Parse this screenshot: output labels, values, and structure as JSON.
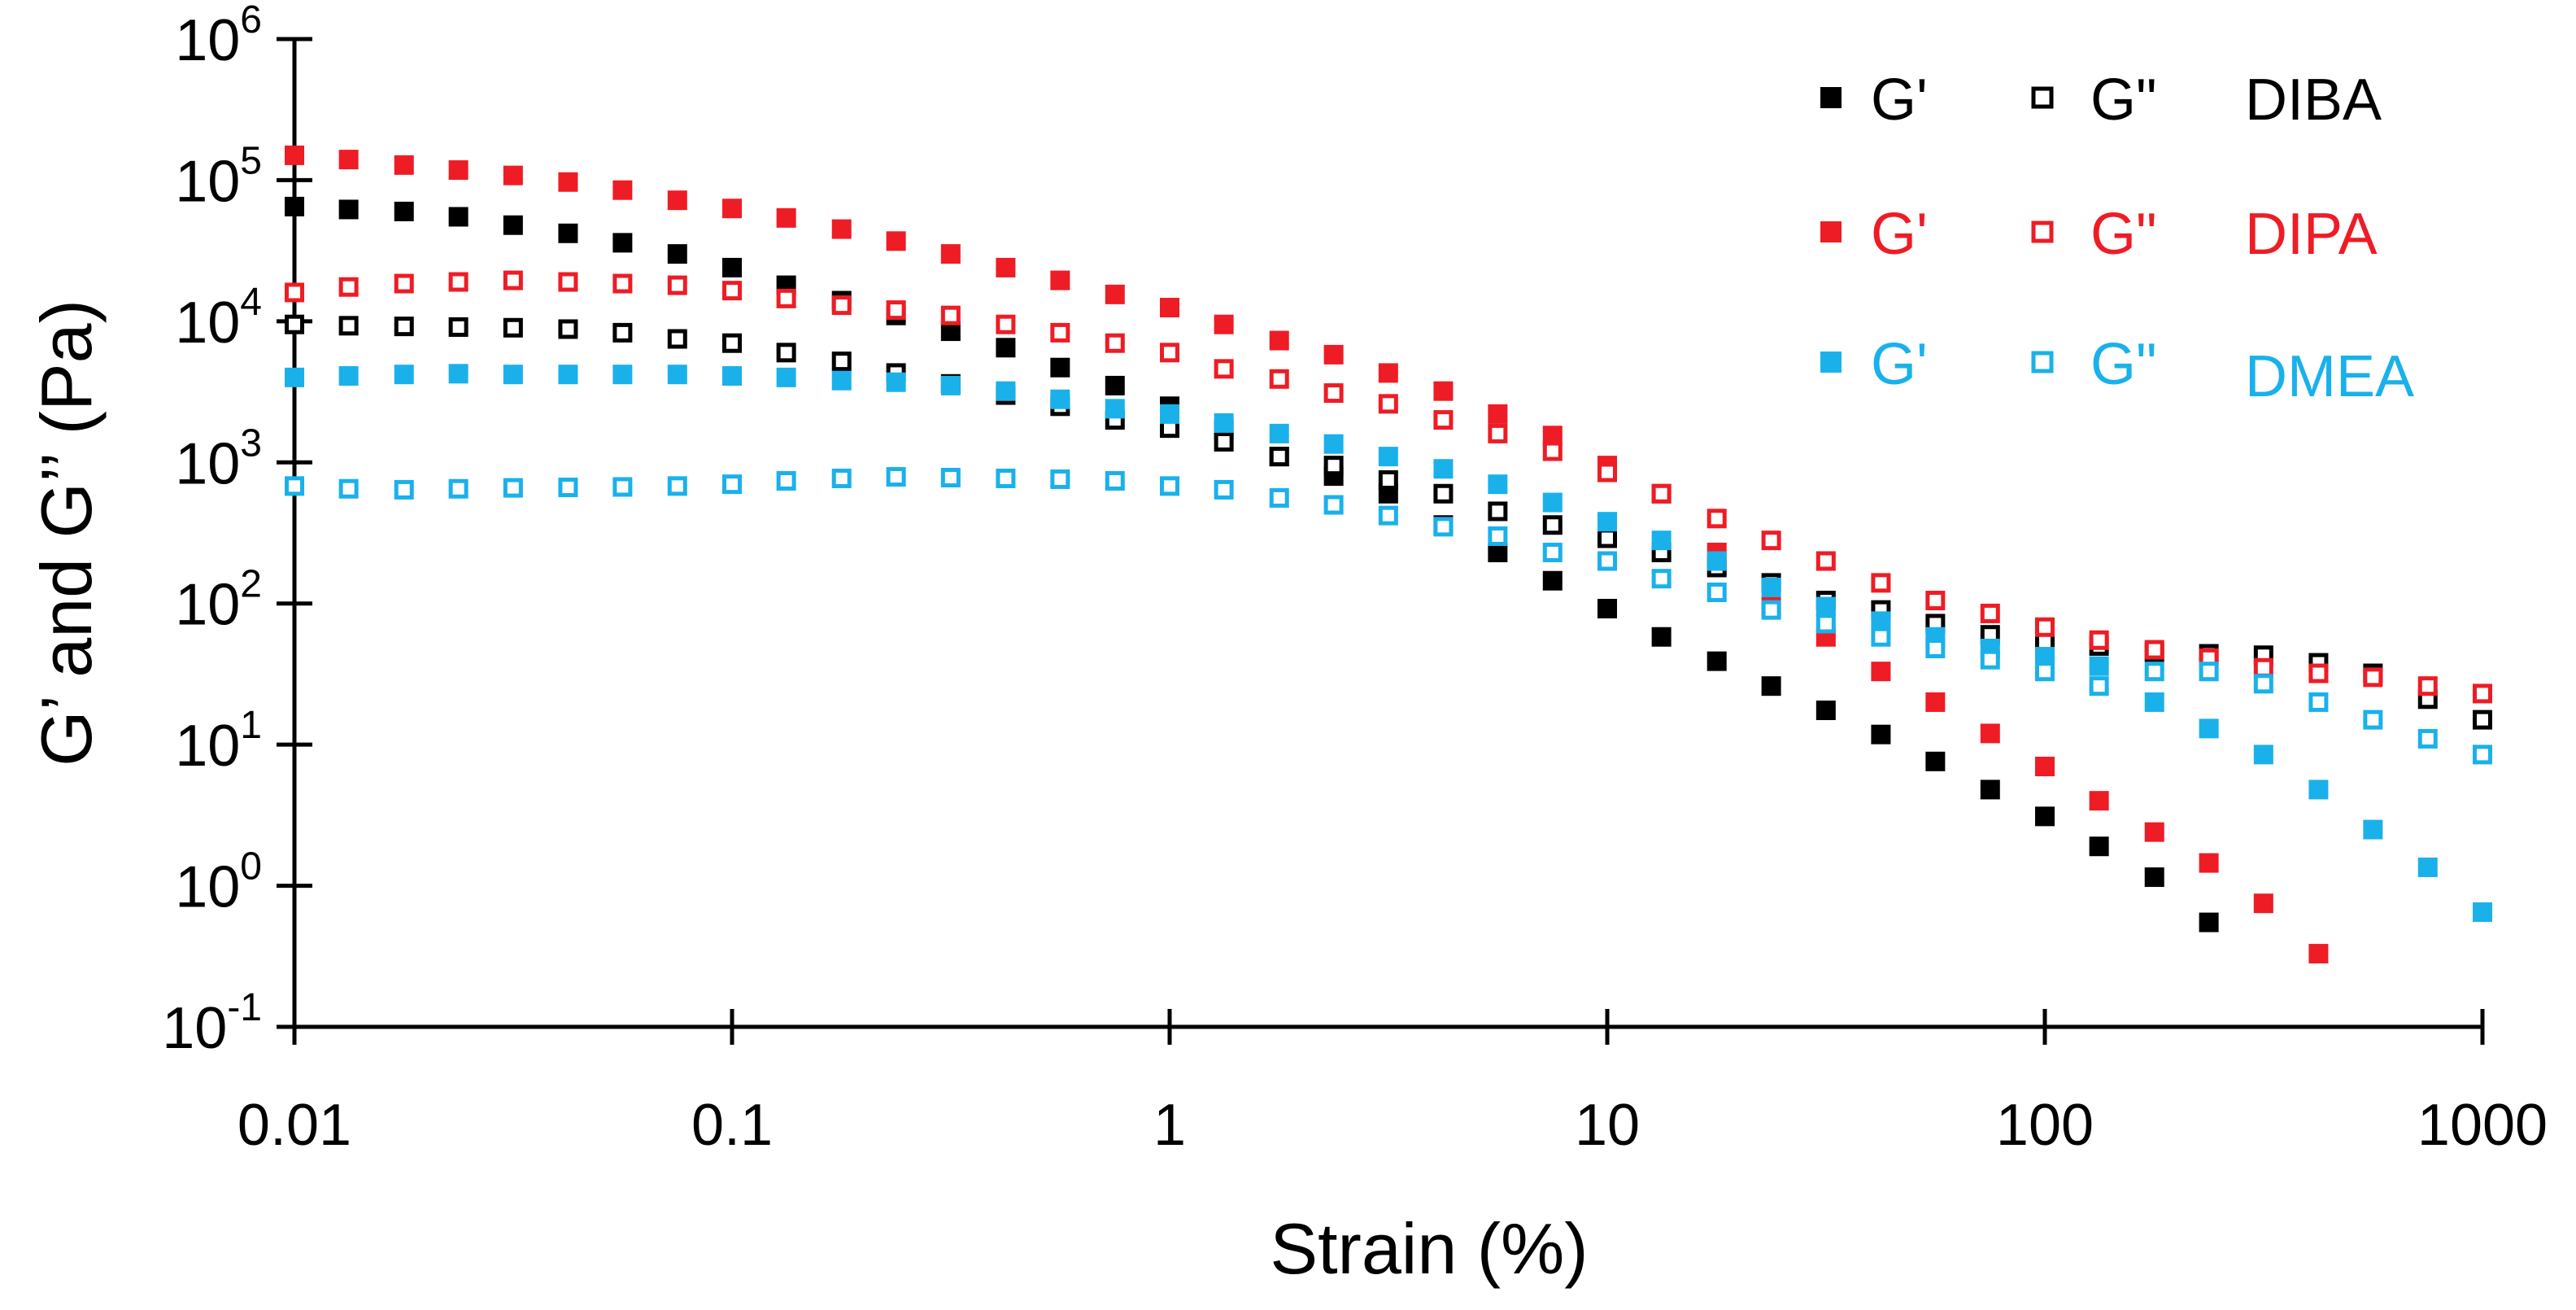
{
  "chart_data": {
    "type": "scatter",
    "title": "",
    "xlabel": "Strain (%)",
    "ylabel": "G’ and G’’ (Pa)",
    "xscale": "log",
    "yscale": "log",
    "xlim": [
      0.01,
      1000
    ],
    "ylim": [
      0.1,
      1000000
    ],
    "x_ticks": [
      {
        "value": 0.01,
        "label": "0.01"
      },
      {
        "value": 0.1,
        "label": "0.1"
      },
      {
        "value": 1,
        "label": "1"
      },
      {
        "value": 10,
        "label": "10"
      },
      {
        "value": 100,
        "label": "100"
      },
      {
        "value": 1000,
        "label": "1000"
      }
    ],
    "y_ticks": [
      {
        "value": 0.1,
        "base": "10",
        "exp": "-1"
      },
      {
        "value": 1,
        "base": "10",
        "exp": "0"
      },
      {
        "value": 10,
        "base": "10",
        "exp": "1"
      },
      {
        "value": 100,
        "base": "10",
        "exp": "2"
      },
      {
        "value": 1000,
        "base": "10",
        "exp": "3"
      },
      {
        "value": 10000,
        "base": "10",
        "exp": "4"
      },
      {
        "value": 100000,
        "base": "10",
        "exp": "5"
      },
      {
        "value": 1000000,
        "base": "10",
        "exp": "6"
      }
    ],
    "grid": false,
    "legend_position": "top-right",
    "x": [
      0.01,
      0.0133,
      0.0178,
      0.0237,
      0.0316,
      0.0422,
      0.0562,
      0.075,
      0.1,
      0.133,
      0.178,
      0.237,
      0.316,
      0.422,
      0.562,
      0.75,
      1,
      1.33,
      1.78,
      2.37,
      3.16,
      4.22,
      5.62,
      7.5,
      10,
      13.3,
      17.8,
      23.7,
      31.6,
      42.2,
      56.2,
      75,
      100,
      133,
      178,
      237,
      316,
      422,
      562,
      750,
      1000
    ],
    "series": [
      {
        "name": "DIBA G'",
        "sample": "DIBA",
        "modulus": "G'",
        "color": "#000000",
        "filled": true,
        "values": [
          65000,
          62000,
          60000,
          55000,
          48000,
          42000,
          36000,
          30000,
          24000,
          18000,
          14000,
          11000,
          8500,
          6500,
          4700,
          3500,
          2500,
          1700,
          1100,
          800,
          600,
          360,
          230,
          145,
          92,
          58,
          39,
          26,
          17.5,
          11.8,
          7.6,
          4.8,
          3.1,
          1.9,
          1.15,
          0.55,
          null,
          null,
          null,
          null,
          null
        ]
      },
      {
        "name": "DIBA G\"",
        "sample": "DIBA",
        "modulus": "G\"",
        "color": "#000000",
        "filled": false,
        "values": [
          9500,
          9300,
          9200,
          9100,
          9000,
          8800,
          8300,
          7500,
          7000,
          6000,
          5200,
          4300,
          3600,
          3000,
          2500,
          2000,
          1750,
          1400,
          1100,
          950,
          750,
          600,
          450,
          360,
          290,
          230,
          180,
          140,
          105,
          90,
          72,
          60,
          53,
          50,
          45,
          44,
          43,
          38,
          32,
          21,
          15
        ]
      },
      {
        "name": "DIPA G'",
        "sample": "DIPA",
        "modulus": "G'",
        "color": "#ee1c25",
        "filled": true,
        "values": [
          150000,
          140000,
          128000,
          118000,
          108000,
          97000,
          85000,
          72000,
          63000,
          54000,
          45000,
          37000,
          30000,
          24000,
          19500,
          15500,
          12500,
          9500,
          7300,
          5800,
          4300,
          3200,
          2200,
          1550,
          950,
          600,
          230,
          95,
          58,
          33,
          20,
          12,
          7,
          4,
          2.4,
          1.45,
          0.75,
          0.33,
          null,
          null,
          null
        ]
      },
      {
        "name": "DIPA G\"",
        "sample": "DIPA",
        "modulus": "G\"",
        "color": "#ee1c25",
        "filled": false,
        "values": [
          16000,
          17500,
          18500,
          19000,
          19500,
          19000,
          18500,
          18000,
          16500,
          14500,
          13000,
          12000,
          11000,
          9500,
          8300,
          7000,
          6000,
          4600,
          3900,
          3100,
          2600,
          2000,
          1600,
          1200,
          850,
          600,
          400,
          280,
          200,
          140,
          105,
          85,
          68,
          55,
          47,
          41,
          35,
          32,
          30,
          26,
          23
        ]
      },
      {
        "name": "DMEA G'",
        "sample": "DMEA",
        "modulus": "G'",
        "color": "#1ab1eb",
        "filled": true,
        "values": [
          4000,
          4100,
          4200,
          4250,
          4200,
          4200,
          4200,
          4200,
          4100,
          4000,
          3800,
          3700,
          3500,
          3200,
          2800,
          2400,
          2200,
          1900,
          1600,
          1350,
          1100,
          900,
          700,
          520,
          380,
          280,
          200,
          130,
          95,
          75,
          58,
          48,
          42,
          36,
          20,
          13,
          8.5,
          4.8,
          2.5,
          1.35,
          0.65
        ]
      },
      {
        "name": "DMEA G\"",
        "sample": "DMEA",
        "modulus": "G\"",
        "color": "#1ab1eb",
        "filled": false,
        "values": [
          680,
          650,
          640,
          650,
          660,
          665,
          670,
          680,
          700,
          740,
          770,
          790,
          780,
          770,
          760,
          740,
          680,
          640,
          560,
          500,
          420,
          350,
          300,
          230,
          200,
          150,
          120,
          90,
          72,
          58,
          48,
          40,
          33,
          26,
          33,
          33,
          27,
          20,
          15,
          11,
          8.5
        ]
      }
    ],
    "legend": {
      "rows": [
        {
          "filled_label": "G'",
          "open_label": "G\"",
          "sample": "DIBA",
          "color": "#000000"
        },
        {
          "filled_label": "G'",
          "open_label": "G\"",
          "sample": "DIPA",
          "color": "#ee1c25"
        },
        {
          "filled_label": "G'",
          "open_label": "G\"",
          "sample": "DMEA",
          "color": "#1ab1eb"
        }
      ]
    }
  }
}
